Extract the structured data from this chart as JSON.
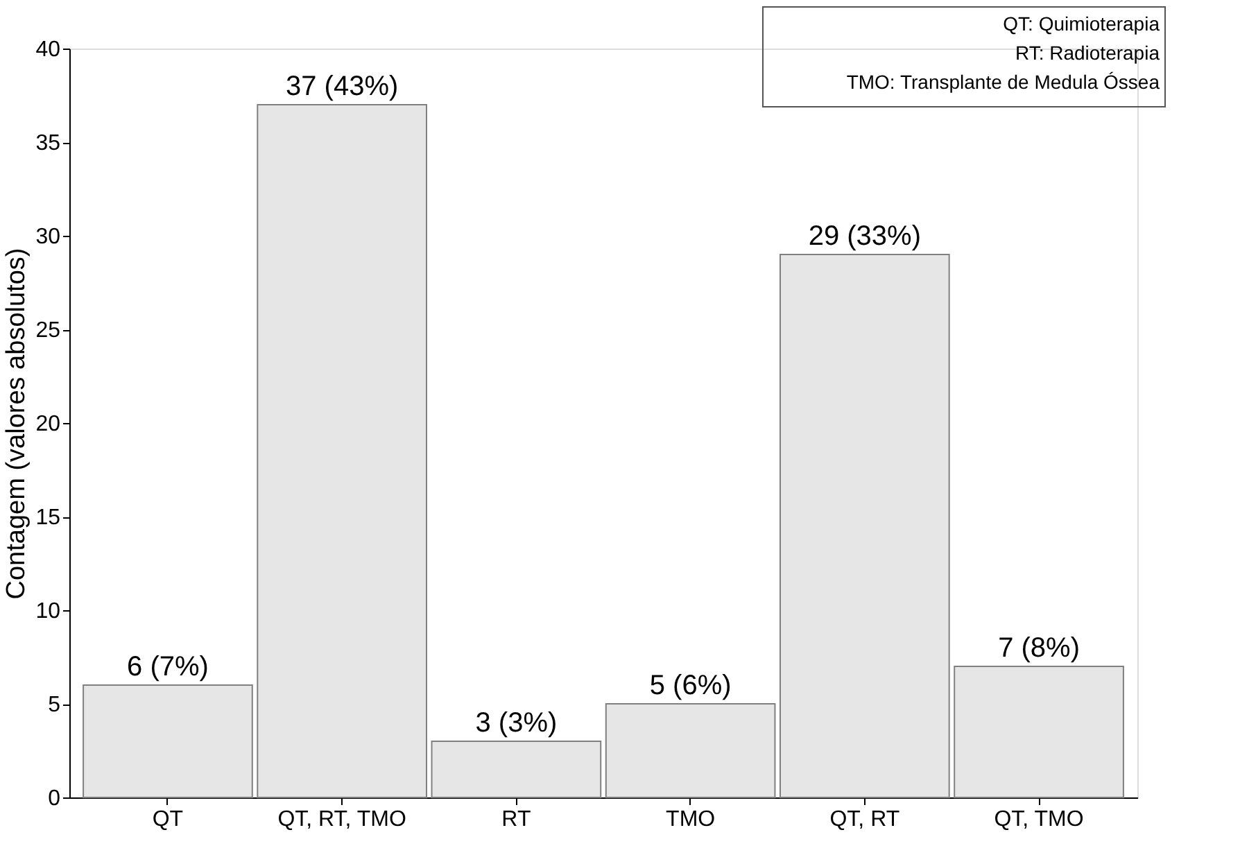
{
  "chart_data": {
    "type": "bar",
    "ylabel": "Contagem (valores absolutos)",
    "categories": [
      "QT",
      "QT, RT, TMO",
      "RT",
      "TMO",
      "QT, RT",
      "QT, TMO"
    ],
    "values": [
      6,
      37,
      3,
      5,
      29,
      7
    ],
    "value_labels": [
      "6 (7%)",
      "37 (43%)",
      "3 (3%)",
      "5 (6%)",
      "29 (33%)",
      "7 (8%)"
    ],
    "color": "#e6e6e6",
    "ylim": [
      0,
      40
    ],
    "yticks": [
      0,
      5,
      10,
      15,
      20,
      25,
      30,
      35,
      40
    ],
    "grid": false,
    "annotations": [
      "QT: Quimioterapia",
      "RT: Radioterapia",
      "TMO: Transplante de Medula Óssea"
    ]
  }
}
